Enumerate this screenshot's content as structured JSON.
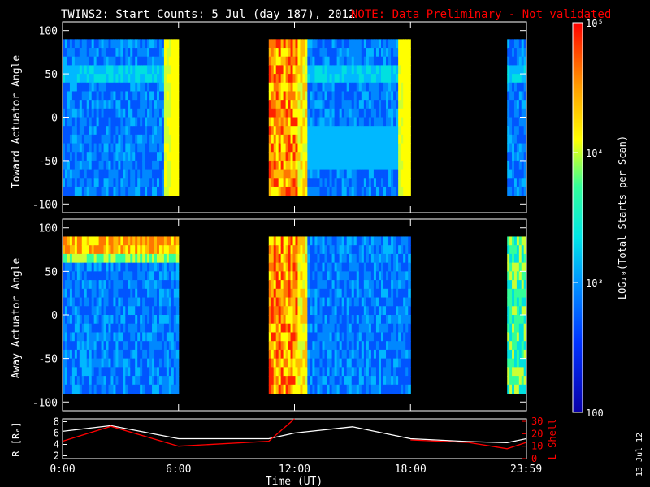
{
  "title": {
    "main": "TWINS2: Start Counts:  5 Jul (day 187), 2012",
    "note": "NOTE: Data Preliminary - Not validated"
  },
  "chart_data": [
    {
      "type": "heatmap",
      "ylabel": "Toward Actuator Angle",
      "ylim": [
        -110,
        110
      ],
      "yticks": [
        "100",
        "50",
        "0",
        "-50",
        "-100"
      ],
      "x_time_ut": [
        "0:00",
        "6:00",
        "12:00",
        "18:00",
        "23:59"
      ],
      "data_segments": [
        {
          "start": "0:00",
          "end": "6:00",
          "dominant_level": "blue to cyan",
          "edge_level": "yellow"
        },
        {
          "start": "10:40",
          "end": "12:40",
          "dominant_level": "orange to red (peaks)"
        },
        {
          "start": "12:40",
          "end": "18:00",
          "dominant_level": "blue to cyan",
          "edge_level": "yellow"
        },
        {
          "start": "23:00",
          "end": "23:59",
          "dominant_level": "blue to cyan"
        }
      ],
      "angle_range": [
        -90,
        90
      ]
    },
    {
      "type": "heatmap",
      "ylabel": "Away Actuator Angle",
      "ylim": [
        -110,
        110
      ],
      "yticks": [
        "100",
        "50",
        "0",
        "-50",
        "-100"
      ],
      "x_time_ut": [
        "0:00",
        "6:00",
        "12:00",
        "18:00",
        "23:59"
      ],
      "data_segments": [
        {
          "start": "0:00",
          "end": "6:00",
          "dominant_level": "blue to cyan",
          "high_angle_level": "yellow to red"
        },
        {
          "start": "10:40",
          "end": "12:40",
          "dominant_level": "orange to red (peaks)"
        },
        {
          "start": "12:40",
          "end": "18:00",
          "dominant_level": "blue"
        },
        {
          "start": "23:00",
          "end": "23:59",
          "dominant_level": "cyan to yellow"
        }
      ],
      "angle_range": [
        -90,
        90
      ]
    },
    {
      "type": "line",
      "ylabel_left": "R [Rₑ]",
      "ylabel_right": "L Shell",
      "yticks_left": [
        "2",
        "4",
        "6",
        "8"
      ],
      "yticks_right": [
        "0",
        "10",
        "20",
        "30"
      ],
      "x": [
        "0:00",
        "2:30",
        "6:00",
        "10:40",
        "12:00",
        "15:00",
        "18:00",
        "21:00",
        "23:00",
        "23:59"
      ],
      "series": [
        {
          "name": "R",
          "color": "#ffffff",
          "values": [
            6.3,
            7.3,
            5.0,
            5.0,
            6.0,
            7.1,
            5.0,
            4.5,
            4.3,
            5.0
          ]
        },
        {
          "name": "L Shell",
          "color": "#ff0000",
          "values": [
            14,
            26,
            10,
            14,
            32,
            null,
            15,
            13,
            8,
            13
          ]
        }
      ]
    }
  ],
  "xaxis": {
    "ticks": [
      "0:00",
      "6:00",
      "12:00",
      "18:00",
      "23:59"
    ],
    "label": "Time (UT)"
  },
  "colorbar": {
    "ticks": [
      "10⁵",
      "10⁴",
      "10³",
      "100"
    ],
    "label": "LOG₁₀(Total Starts per Scan)",
    "scale": "log",
    "range": [
      100,
      100000
    ]
  },
  "date_stamp": "13 Jul 12",
  "colors": {
    "note": "#ff0000",
    "text": "#ffffff",
    "background": "#000000"
  }
}
